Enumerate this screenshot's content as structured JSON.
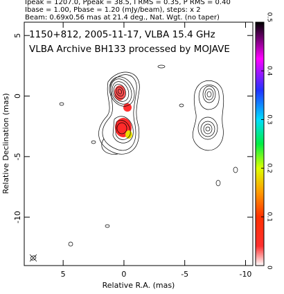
{
  "chart_data": {
    "type": "contour",
    "header": [
      "Ipeak = 1207.0, Ppeak = 38.5, I RMS = 0.35, P RMS = 0.40",
      "Ibase = 1.00, Pbase = 1.20 (mJy/beam), steps: x 2",
      "Beam: 0.69x0.56 mas at 21.4 deg., Nat. Wgt. (no taper)"
    ],
    "annotations": [
      "1150+812, 2005-11-17, VLBA 15.4 GHz",
      "VLBA Archive BH133 processed by MOJAVE"
    ],
    "xlabel": "Relative R.A. (mas)",
    "ylabel": "Relative Declination (mas)",
    "xlim": [
      8.2,
      -10.6
    ],
    "ylim": [
      -14,
      6.1
    ],
    "xticks": [
      5,
      0,
      -5,
      -10
    ],
    "yticks": [
      5,
      0,
      -5,
      -10
    ],
    "colorbar": {
      "ylim": [
        0,
        0.5
      ],
      "yticks": [
        0,
        0.1,
        0.2,
        0.3,
        0.4,
        0.5
      ]
    }
  }
}
